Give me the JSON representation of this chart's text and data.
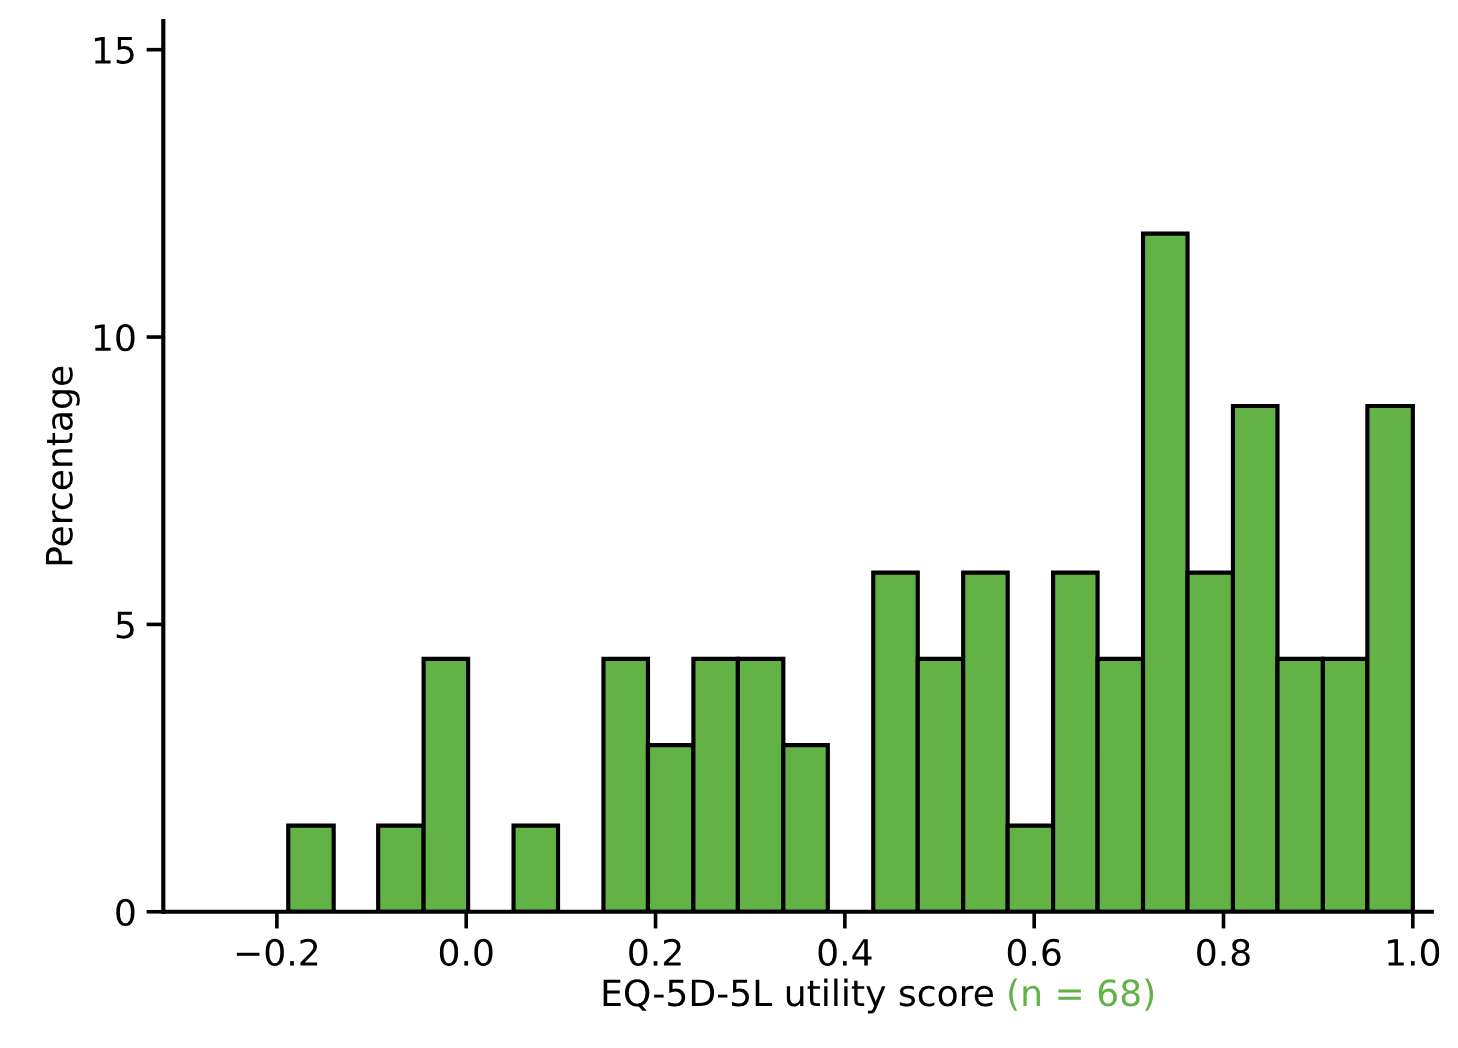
{
  "chart_data": {
    "type": "histogram",
    "xlabel": "EQ-5D-5L utility score",
    "ylabel": "Percentage",
    "annotations": [
      "(n = 68)"
    ],
    "bins": [
      -0.188,
      -0.14,
      -0.093,
      -0.045,
      0.002,
      0.05,
      0.097,
      0.145,
      0.192,
      0.24,
      0.287,
      0.335,
      0.382,
      0.43,
      0.477,
      0.525,
      0.572,
      0.62,
      0.667,
      0.715,
      0.762,
      0.81,
      0.857,
      0.905,
      0.952,
      1.0
    ],
    "values": [
      1.5,
      0,
      1.5,
      4.4,
      0,
      1.5,
      0,
      4.4,
      2.9,
      4.4,
      4.4,
      2.9,
      0,
      5.9,
      4.4,
      5.9,
      1.5,
      5.9,
      4.4,
      11.8,
      5.9,
      8.8,
      4.4,
      4.4,
      8.8
    ],
    "color": "#62b246",
    "xlim": [
      -0.32,
      1.02
    ],
    "ylim": [
      0,
      15.5
    ],
    "xticks": [
      {
        "value": -0.2,
        "label": "−0.2"
      },
      {
        "value": 0.0,
        "label": "0.0"
      },
      {
        "value": 0.2,
        "label": "0.2"
      },
      {
        "value": 0.4,
        "label": "0.4"
      },
      {
        "value": 0.6,
        "label": "0.6"
      },
      {
        "value": 0.8,
        "label": "0.8"
      },
      {
        "value": 1.0,
        "label": "1.0"
      }
    ],
    "yticks": [
      0,
      5,
      10,
      15
    ],
    "grid": false,
    "legend": false
  }
}
